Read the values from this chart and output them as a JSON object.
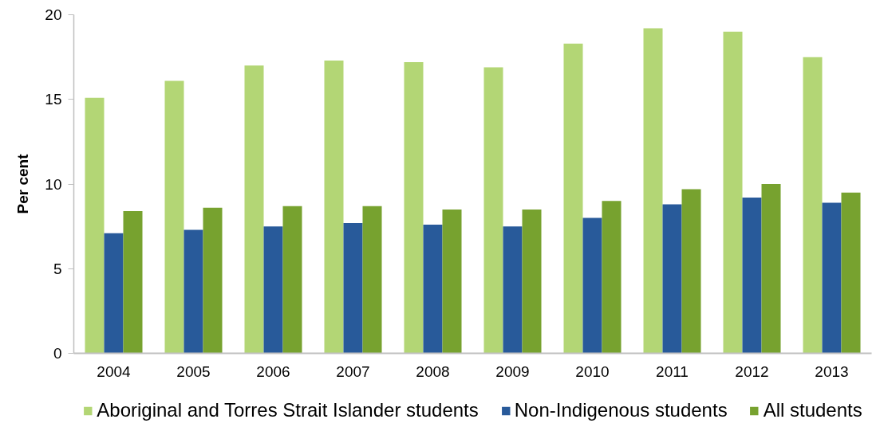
{
  "chart_data": {
    "type": "bar",
    "ylabel": "Per cent",
    "categories": [
      "2004",
      "2005",
      "2006",
      "2007",
      "2008",
      "2009",
      "2010",
      "2011",
      "2012",
      "2013"
    ],
    "series": [
      {
        "name": "Aboriginal and Torres Strait Islander students",
        "color": "#b3d675",
        "values": [
          15.1,
          16.1,
          17.0,
          17.3,
          17.2,
          16.9,
          18.3,
          19.2,
          19.0,
          17.5
        ]
      },
      {
        "name": "Non-Indigenous students",
        "color": "#285a9a",
        "values": [
          7.1,
          7.3,
          7.5,
          7.7,
          7.6,
          7.5,
          8.0,
          8.8,
          9.2,
          8.9
        ]
      },
      {
        "name": "All students",
        "color": "#77a22f",
        "values": [
          8.4,
          8.6,
          8.7,
          8.7,
          8.5,
          8.5,
          9.0,
          9.7,
          10.0,
          9.5
        ]
      }
    ],
    "ylim": [
      0,
      20
    ],
    "yticks": [
      0,
      5,
      10,
      15,
      20
    ],
    "legend": "bottom"
  }
}
